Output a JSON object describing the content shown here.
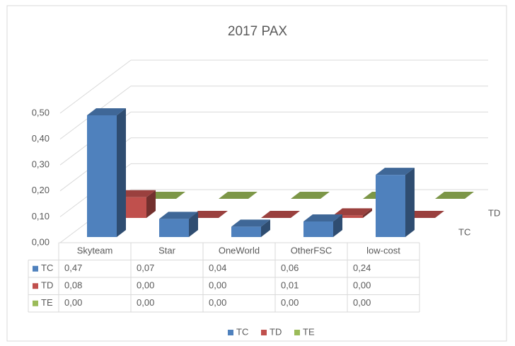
{
  "chart_data": {
    "type": "bar3d",
    "title": "2017 PAX",
    "categories": [
      "Skyteam",
      "Star",
      "OneWorld",
      "OtherFSC",
      "low-cost"
    ],
    "series": [
      {
        "name": "TC",
        "color": "#4f81bd",
        "values": [
          0.47,
          0.07,
          0.04,
          0.06,
          0.24
        ],
        "value_labels": [
          "0,47",
          "0,07",
          "0,04",
          "0,06",
          "0,24"
        ]
      },
      {
        "name": "TD",
        "color": "#c0504d",
        "values": [
          0.08,
          0.0,
          0.0,
          0.01,
          0.0
        ],
        "value_labels": [
          "0,08",
          "0,00",
          "0,00",
          "0,01",
          "0,00"
        ]
      },
      {
        "name": "TE",
        "color": "#9bbb59",
        "values": [
          0.0,
          0.0,
          0.0,
          0.0,
          0.0
        ],
        "value_labels": [
          "0,00",
          "0,00",
          "0,00",
          "0,00",
          "0,00"
        ]
      }
    ],
    "ylim": [
      0,
      0.5
    ],
    "yticks": [
      {
        "value": 0,
        "label": "0,00"
      },
      {
        "value": 0.1,
        "label": "0,10"
      },
      {
        "value": 0.2,
        "label": "0,20"
      },
      {
        "value": 0.3,
        "label": "0,30"
      },
      {
        "value": 0.4,
        "label": "0,40"
      },
      {
        "value": 0.5,
        "label": "0,50"
      }
    ],
    "grid": true,
    "legend": "bottom",
    "data_table": true
  }
}
